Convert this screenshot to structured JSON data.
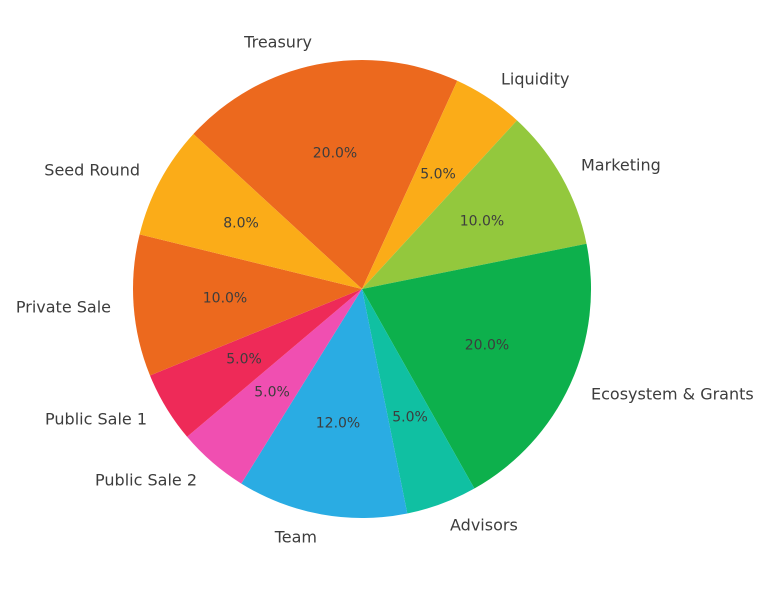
{
  "figure": {
    "background_color": "#ffffff",
    "text_color": "#3d3d3d"
  },
  "chart_data": {
    "type": "pie",
    "title": "",
    "legend": "none",
    "start_angle_deg": 137.4,
    "direction": "clockwise",
    "pct_distance": 0.6,
    "label_distance": 1.1,
    "total": 100,
    "slices": [
      {
        "label": "Treasury",
        "value": 20,
        "pct_label": "20.0%",
        "color": "#EC691E"
      },
      {
        "label": "Liquidity",
        "value": 5,
        "pct_label": "5.0%",
        "color": "#FBAC18"
      },
      {
        "label": "Marketing",
        "value": 10,
        "pct_label": "10.0%",
        "color": "#93C83D"
      },
      {
        "label": "Ecosystem & Grants",
        "value": 20,
        "pct_label": "20.0%",
        "color": "#0DB04C"
      },
      {
        "label": "Advisors",
        "value": 5,
        "pct_label": "5.0%",
        "color": "#10C0A2"
      },
      {
        "label": "Team",
        "value": 12,
        "pct_label": "12.0%",
        "color": "#2AACE3"
      },
      {
        "label": "Public Sale 2",
        "value": 5,
        "pct_label": "5.0%",
        "color": "#F04FB1"
      },
      {
        "label": "Public Sale 1",
        "value": 5,
        "pct_label": "5.0%",
        "color": "#EE2A58"
      },
      {
        "label": "Private Sale",
        "value": 10,
        "pct_label": "10.0%",
        "color": "#EC691E"
      },
      {
        "label": "Seed Round",
        "value": 8,
        "pct_label": "8.0%",
        "color": "#FBAC18"
      }
    ]
  }
}
